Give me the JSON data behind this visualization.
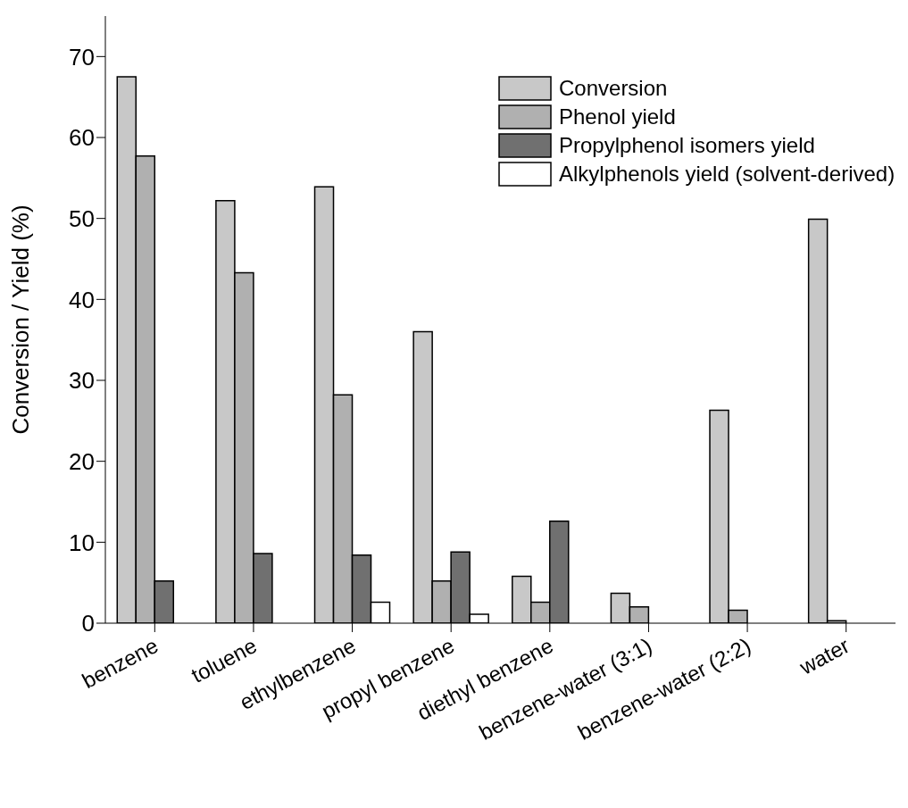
{
  "chart_data": {
    "type": "bar",
    "ylabel": "Conversion / Yield (%)",
    "categories": [
      "benzene",
      "toluene",
      "ethylbenzene",
      "propyl benzene",
      "diethyl benzene",
      "benzene-water (3:1)",
      "benzene-water (2:2)",
      "water"
    ],
    "series": [
      {
        "name": "Conversion",
        "color": "#c8c8c8",
        "values": [
          67.5,
          52.2,
          53.9,
          36.0,
          5.8,
          3.7,
          26.3,
          49.9
        ]
      },
      {
        "name": "Phenol yield",
        "color": "#b0b0b0",
        "values": [
          57.7,
          43.3,
          28.2,
          5.2,
          2.6,
          2.0,
          1.6,
          0.3
        ]
      },
      {
        "name": "Propylphenol isomers yield",
        "color": "#707070",
        "values": [
          5.2,
          8.6,
          8.4,
          8.8,
          12.6,
          null,
          null,
          null
        ]
      },
      {
        "name": "Alkylphenols yield (solvent-derived)",
        "color": "#ffffff",
        "values": [
          null,
          null,
          2.6,
          1.1,
          null,
          null,
          null,
          null
        ]
      }
    ],
    "ylim": [
      0,
      75
    ],
    "yticks": [
      0,
      10,
      20,
      30,
      40,
      50,
      60,
      70
    ],
    "grid": false,
    "legend": "top right"
  }
}
